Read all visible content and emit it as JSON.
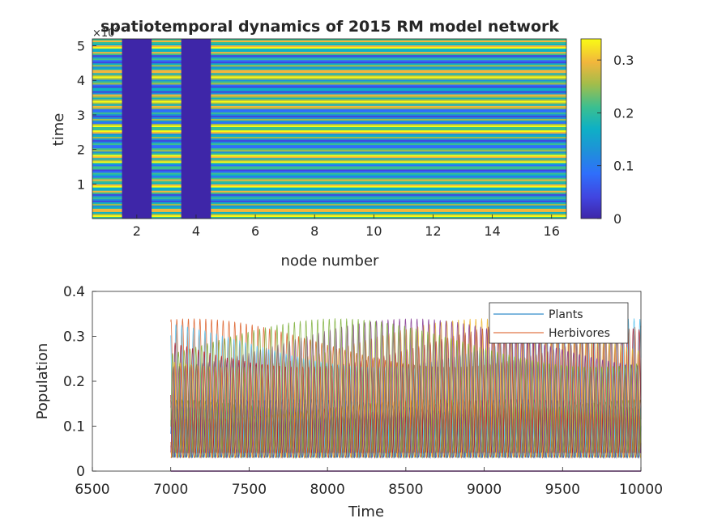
{
  "chart_data": [
    {
      "type": "heatmap",
      "title": "spatiotemporal dynamics of 2015 RM model network",
      "xlabel": "node number",
      "ylabel": "time",
      "xlim": [
        0.5,
        16.5
      ],
      "ylim": [
        0,
        52000
      ],
      "x_ticks": [
        2,
        4,
        6,
        8,
        10,
        12,
        14,
        16
      ],
      "y_ticks": [
        1,
        2,
        3,
        4,
        5
      ],
      "y_exponent": "4",
      "zero_nodes": [
        2,
        4
      ],
      "colorbar": {
        "ticks": [
          0,
          0.1,
          0.2,
          0.3
        ],
        "range": [
          0,
          0.34
        ]
      }
    },
    {
      "type": "line",
      "xlabel": "Time",
      "ylabel": "Population",
      "xlim": [
        6500,
        10000
      ],
      "ylim": [
        0,
        0.4
      ],
      "x_ticks": [
        6500,
        7000,
        7500,
        8000,
        8500,
        9000,
        9500,
        10000
      ],
      "y_ticks": [
        0,
        0.1,
        0.2,
        0.3,
        0.4
      ],
      "data_start": 7000,
      "period": 37,
      "series": [
        {
          "name": "Plants",
          "color": "#0072bd",
          "min": 0.03,
          "max": 0.16
        },
        {
          "name": "Herbivores",
          "color": "#d95319",
          "min": 0.04,
          "max": 0.34
        }
      ],
      "legend": "top-right"
    }
  ]
}
